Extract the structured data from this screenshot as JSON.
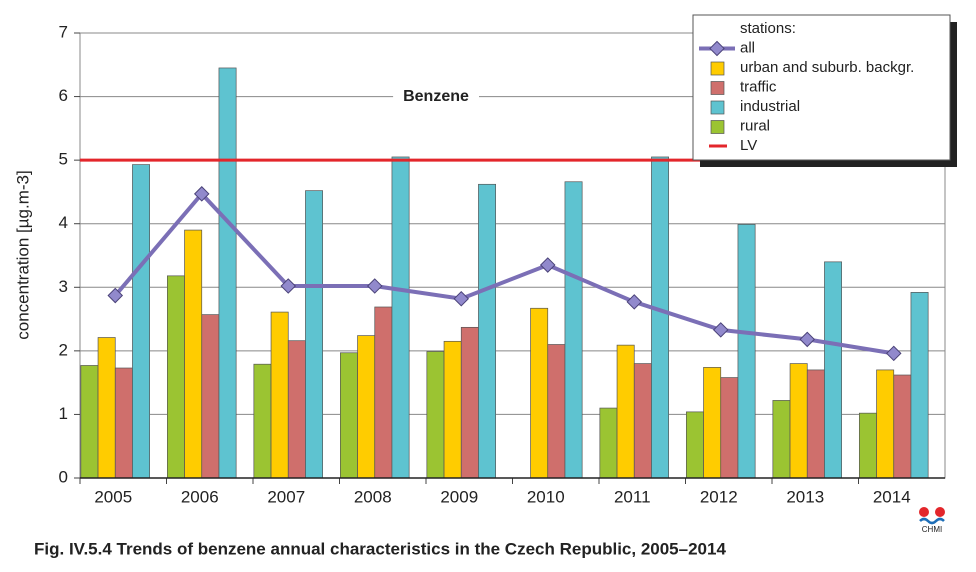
{
  "chart_data": {
    "type": "bar-line",
    "title": "Fig. IV.5.4  Trends of benzene annual characteristics in the Czech Republic, 2005–2014",
    "annotation": "Benzene",
    "ylabel": "concentration [µg.m-3]",
    "categories": [
      "2005",
      "2006",
      "2007",
      "2008",
      "2009",
      "2010",
      "2011",
      "2012",
      "2013",
      "2014"
    ],
    "ylim": [
      0,
      7
    ],
    "yticks": [
      0,
      1,
      2,
      3,
      4,
      5,
      6,
      7
    ],
    "grid": true,
    "legend_title": "stations:",
    "legend": "upper right",
    "series": [
      {
        "name": "all",
        "type": "line",
        "color": "#7b6fb6",
        "values": [
          2.87,
          4.47,
          3.02,
          3.02,
          2.82,
          3.35,
          2.77,
          2.33,
          2.18,
          1.96
        ]
      },
      {
        "name": "urban and suburb. backgr.",
        "type": "bar",
        "color": "#ffcc00",
        "values": [
          2.21,
          3.9,
          2.61,
          2.24,
          2.15,
          2.67,
          2.09,
          1.74,
          1.8,
          1.7
        ]
      },
      {
        "name": "traffic",
        "type": "bar",
        "color": "#cf6f6c",
        "values": [
          1.73,
          2.57,
          2.16,
          2.69,
          2.37,
          2.1,
          1.8,
          1.58,
          1.7,
          1.62
        ]
      },
      {
        "name": "industrial",
        "type": "bar",
        "color": "#5ec3d0",
        "values": [
          4.93,
          6.45,
          4.52,
          5.05,
          4.62,
          4.66,
          5.05,
          3.99,
          3.4,
          2.92
        ]
      },
      {
        "name": "rural",
        "type": "bar",
        "color": "#9bc432",
        "values": [
          1.77,
          3.18,
          1.79,
          1.97,
          1.99,
          null,
          1.1,
          1.04,
          1.22,
          1.02
        ]
      }
    ],
    "reference_line": {
      "name": "LV",
      "value": 5,
      "color": "#e3262b"
    },
    "logo": "CHMI"
  }
}
